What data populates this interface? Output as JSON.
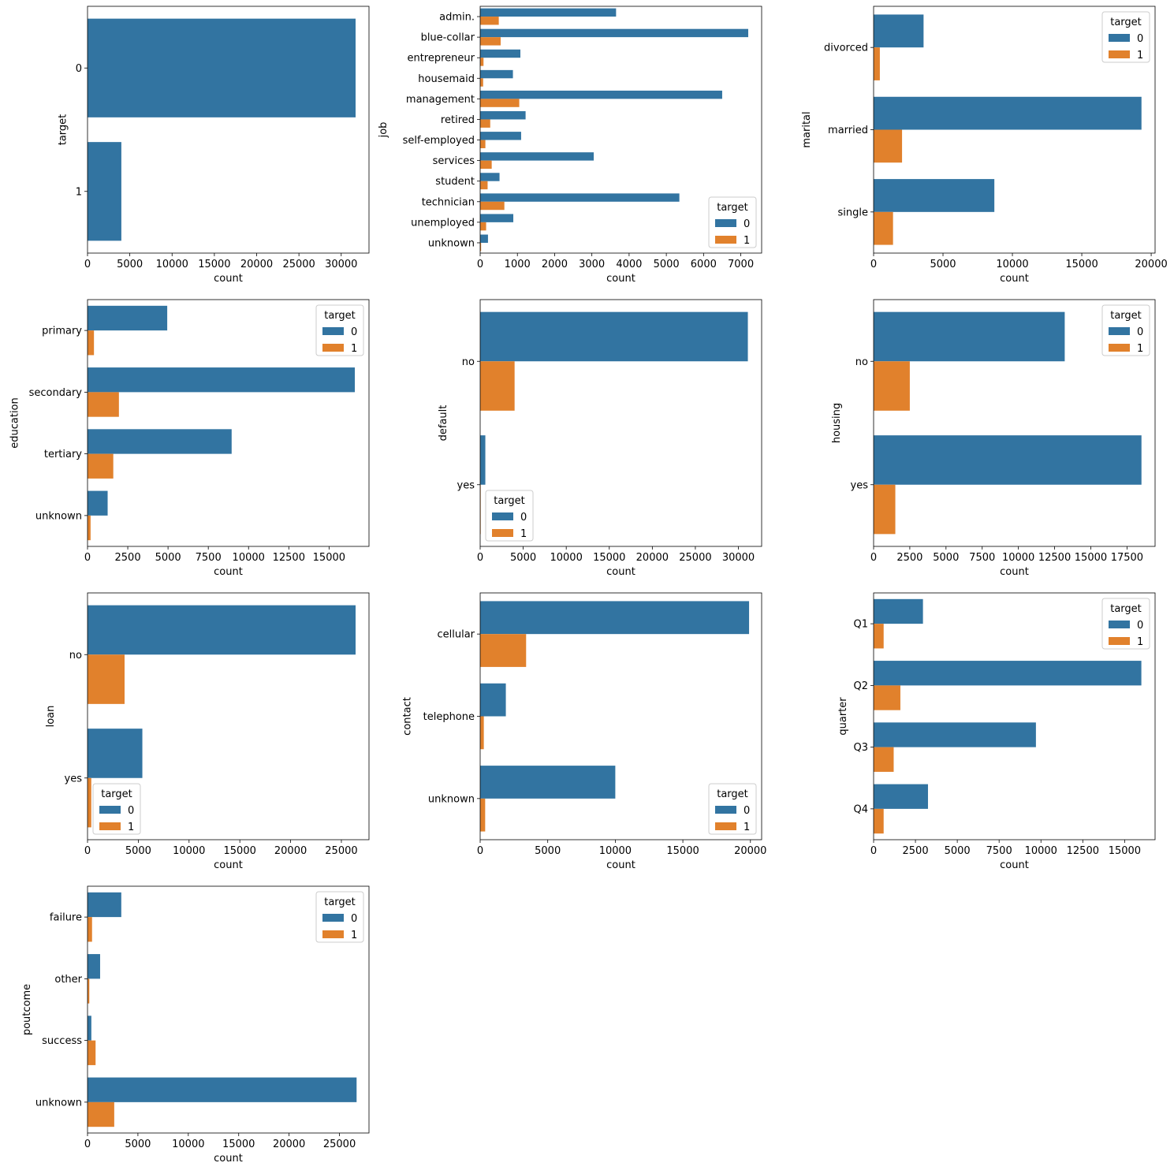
{
  "colors": {
    "target_0": "#3274a1",
    "target_1": "#e1812c"
  },
  "chart_data": [
    {
      "type": "bar",
      "orientation": "horizontal",
      "xlabel": "count",
      "ylabel": "target",
      "categories": [
        "0",
        "1"
      ],
      "series": [
        {
          "name": "",
          "values": [
            31700,
            4000
          ]
        }
      ],
      "xlim": [
        0,
        33285
      ],
      "xticks": [
        "0",
        "5000",
        "10000",
        "15000",
        "20000",
        "25000",
        "30000"
      ],
      "legend": null
    },
    {
      "type": "bar",
      "orientation": "horizontal",
      "xlabel": "count",
      "ylabel": "job",
      "categories": [
        "admin.",
        "blue-collar",
        "entrepreneur",
        "housemaid",
        "management",
        "retired",
        "self-employed",
        "services",
        "student",
        "technician",
        "unemployed",
        "unknown"
      ],
      "series": [
        {
          "name": "0",
          "values": [
            3650,
            7200,
            1080,
            880,
            6500,
            1220,
            1100,
            3050,
            520,
            5350,
            890,
            210
          ]
        },
        {
          "name": "1",
          "values": [
            500,
            550,
            90,
            80,
            1050,
            270,
            140,
            310,
            200,
            650,
            160,
            25
          ]
        }
      ],
      "xlim": [
        0,
        7560
      ],
      "xticks": [
        "0",
        "1000",
        "2000",
        "3000",
        "4000",
        "5000",
        "6000",
        "7000"
      ],
      "legend": {
        "title": "target",
        "entries": [
          "0",
          "1"
        ],
        "position": "lower-right"
      }
    },
    {
      "type": "bar",
      "orientation": "horizontal",
      "xlabel": "count",
      "ylabel": "marital",
      "categories": [
        "divorced",
        "married",
        "single"
      ],
      "series": [
        {
          "name": "0",
          "values": [
            3600,
            19300,
            8700
          ]
        },
        {
          "name": "1",
          "values": [
            450,
            2050,
            1400
          ]
        }
      ],
      "xlim": [
        0,
        20280
      ],
      "xticks": [
        "0",
        "5000",
        "10000",
        "15000",
        "20000"
      ],
      "legend": {
        "title": "target",
        "entries": [
          "0",
          "1"
        ],
        "position": "upper-right"
      }
    },
    {
      "type": "bar",
      "orientation": "horizontal",
      "xlabel": "count",
      "ylabel": "education",
      "categories": [
        "primary",
        "secondary",
        "tertiary",
        "unknown"
      ],
      "series": [
        {
          "name": "0",
          "values": [
            4950,
            16600,
            8950,
            1250
          ]
        },
        {
          "name": "1",
          "values": [
            400,
            1950,
            1600,
            190
          ]
        }
      ],
      "xlim": [
        0,
        17480
      ],
      "xticks": [
        "0",
        "2500",
        "5000",
        "7500",
        "10000",
        "12500",
        "15000"
      ],
      "legend": {
        "title": "target",
        "entries": [
          "0",
          "1"
        ],
        "position": "upper-right"
      }
    },
    {
      "type": "bar",
      "orientation": "horizontal",
      "xlabel": "count",
      "ylabel": "default",
      "categories": [
        "no",
        "yes"
      ],
      "series": [
        {
          "name": "0",
          "values": [
            31100,
            600
          ]
        },
        {
          "name": "1",
          "values": [
            4000,
            60
          ]
        }
      ],
      "xlim": [
        0,
        32700
      ],
      "xticks": [
        "0",
        "5000",
        "10000",
        "15000",
        "20000",
        "25000",
        "30000"
      ],
      "legend": {
        "title": "target",
        "entries": [
          "0",
          "1"
        ],
        "position": "lower-left"
      }
    },
    {
      "type": "bar",
      "orientation": "horizontal",
      "xlabel": "count",
      "ylabel": "housing",
      "categories": [
        "no",
        "yes"
      ],
      "series": [
        {
          "name": "0",
          "values": [
            13200,
            18500
          ]
        },
        {
          "name": "1",
          "values": [
            2500,
            1500
          ]
        }
      ],
      "xlim": [
        0,
        19440
      ],
      "xticks": [
        "0",
        "2500",
        "5000",
        "7500",
        "10000",
        "12500",
        "15000",
        "17500"
      ],
      "legend": {
        "title": "target",
        "entries": [
          "0",
          "1"
        ],
        "position": "upper-right"
      }
    },
    {
      "type": "bar",
      "orientation": "horizontal",
      "xlabel": "count",
      "ylabel": "loan",
      "categories": [
        "no",
        "yes"
      ],
      "series": [
        {
          "name": "0",
          "values": [
            26400,
            5400
          ]
        },
        {
          "name": "1",
          "values": [
            3650,
            370
          ]
        }
      ],
      "xlim": [
        0,
        27720
      ],
      "xticks": [
        "0",
        "5000",
        "10000",
        "15000",
        "20000",
        "25000"
      ],
      "legend": {
        "title": "target",
        "entries": [
          "0",
          "1"
        ],
        "position": "lower-left"
      }
    },
    {
      "type": "bar",
      "orientation": "horizontal",
      "xlabel": "count",
      "ylabel": "contact",
      "categories": [
        "cellular",
        "telephone",
        "unknown"
      ],
      "series": [
        {
          "name": "0",
          "values": [
            19900,
            1900,
            10000
          ]
        },
        {
          "name": "1",
          "values": [
            3400,
            270,
            370
          ]
        }
      ],
      "xlim": [
        0,
        20830
      ],
      "xticks": [
        "0",
        "5000",
        "10000",
        "15000",
        "20000"
      ],
      "legend": {
        "title": "target",
        "entries": [
          "0",
          "1"
        ],
        "position": "lower-right"
      }
    },
    {
      "type": "bar",
      "orientation": "horizontal",
      "xlabel": "count",
      "ylabel": "quarter",
      "categories": [
        "Q1",
        "Q2",
        "Q3",
        "Q4"
      ],
      "series": [
        {
          "name": "0",
          "values": [
            2950,
            16000,
            9700,
            3250
          ]
        },
        {
          "name": "1",
          "values": [
            600,
            1600,
            1200,
            600
          ]
        }
      ],
      "xlim": [
        0,
        16820
      ],
      "xticks": [
        "0",
        "2500",
        "5000",
        "7500",
        "10000",
        "12500",
        "15000"
      ],
      "legend": {
        "title": "target",
        "entries": [
          "0",
          "1"
        ],
        "position": "upper-right"
      }
    },
    {
      "type": "bar",
      "orientation": "horizontal",
      "xlabel": "count",
      "ylabel": "poutcome",
      "categories": [
        "failure",
        "other",
        "success",
        "unknown"
      ],
      "series": [
        {
          "name": "0",
          "values": [
            3350,
            1250,
            380,
            26700
          ]
        },
        {
          "name": "1",
          "values": [
            450,
            180,
            800,
            2650
          ]
        }
      ],
      "xlim": [
        0,
        27930
      ],
      "xticks": [
        "0",
        "5000",
        "10000",
        "15000",
        "20000",
        "25000"
      ],
      "legend": {
        "title": "target",
        "entries": [
          "0",
          "1"
        ],
        "position": "upper-right"
      }
    }
  ]
}
